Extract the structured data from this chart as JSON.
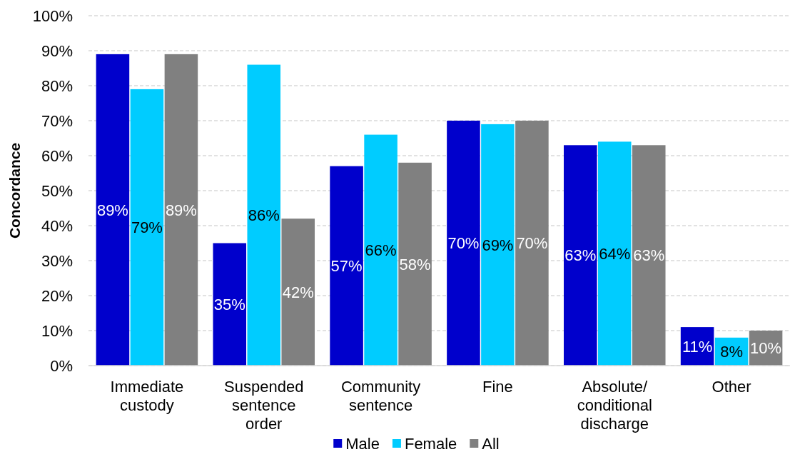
{
  "chart_data": {
    "type": "bar",
    "ylabel": "Concordance",
    "categories": [
      "Immediate custody",
      "Suspended sentence order",
      "Community sentence",
      "Fine",
      "Absolute/ conditional discharge",
      "Other"
    ],
    "series": [
      {
        "name": "Male",
        "color": "#0000cc",
        "values": [
          89,
          35,
          57,
          70,
          63,
          11
        ],
        "value_labels": [
          "89%",
          "35%",
          "57%",
          "70%",
          "63%",
          "11%"
        ]
      },
      {
        "name": "Female",
        "color": "#00ccff",
        "values": [
          79,
          86,
          66,
          69,
          64,
          8
        ],
        "value_labels": [
          "79%",
          "86%",
          "66%",
          "69%",
          "64%",
          "8%"
        ]
      },
      {
        "name": "All",
        "color": "#808080",
        "values": [
          89,
          42,
          58,
          70,
          63,
          10
        ],
        "value_labels": [
          "89%",
          "42%",
          "58%",
          "70%",
          "63%",
          "10%"
        ]
      }
    ],
    "ylim": [
      0,
      100
    ],
    "yticks": [
      {
        "value": 0,
        "label": "0%"
      },
      {
        "value": 10,
        "label": "10%"
      },
      {
        "value": 20,
        "label": "20%"
      },
      {
        "value": 30,
        "label": "30%"
      },
      {
        "value": 40,
        "label": "40%"
      },
      {
        "value": 50,
        "label": "50%"
      },
      {
        "value": 60,
        "label": "60%"
      },
      {
        "value": 70,
        "label": "70%"
      },
      {
        "value": 80,
        "label": "80%"
      },
      {
        "value": 90,
        "label": "90%"
      },
      {
        "value": 100,
        "label": "100%"
      }
    ],
    "grid": "y",
    "legend": "bottom"
  }
}
